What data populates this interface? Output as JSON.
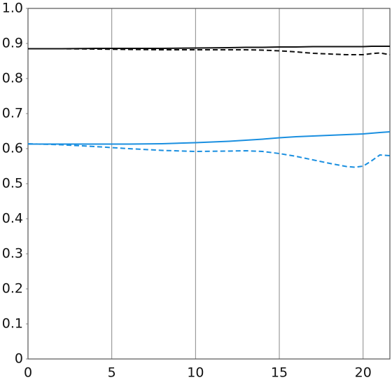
{
  "chart_data": {
    "type": "line",
    "x": [
      0,
      2,
      4,
      6,
      8,
      10,
      12,
      13,
      14,
      15,
      16,
      17,
      18,
      19,
      19.5,
      20,
      20.5,
      21,
      21.6
    ],
    "series": [
      {
        "color": "#111111",
        "dash": false,
        "values": [
          0.885,
          0.885,
          0.886,
          0.886,
          0.886,
          0.887,
          0.888,
          0.889,
          0.889,
          0.89,
          0.89,
          0.891,
          0.891,
          0.891,
          0.891,
          0.891,
          0.892,
          0.892,
          0.892
        ]
      },
      {
        "color": "#111111",
        "dash": true,
        "values": [
          0.885,
          0.885,
          0.884,
          0.883,
          0.882,
          0.882,
          0.882,
          0.882,
          0.881,
          0.879,
          0.876,
          0.872,
          0.87,
          0.868,
          0.868,
          0.868,
          0.871,
          0.873,
          0.868
        ]
      },
      {
        "color": "#1a8fe0",
        "dash": false,
        "values": [
          0.613,
          0.613,
          0.613,
          0.613,
          0.614,
          0.617,
          0.621,
          0.624,
          0.627,
          0.631,
          0.634,
          0.636,
          0.638,
          0.64,
          0.641,
          0.642,
          0.644,
          0.646,
          0.648
        ]
      },
      {
        "color": "#1a8fe0",
        "dash": true,
        "values": [
          0.614,
          0.611,
          0.606,
          0.6,
          0.595,
          0.592,
          0.593,
          0.594,
          0.592,
          0.586,
          0.578,
          0.568,
          0.558,
          0.549,
          0.547,
          0.55,
          0.565,
          0.582,
          0.58
        ]
      }
    ],
    "xlim": [
      0,
      21.6
    ],
    "xticks": [
      0,
      5,
      10,
      15,
      20
    ],
    "ylim": [
      0,
      1
    ],
    "yticks": [
      0,
      0.1,
      0.2,
      0.3,
      0.4,
      0.5,
      0.6,
      0.7,
      0.8,
      0.9,
      {
        "value": 1,
        "label": "1.0"
      }
    ],
    "grid": "x"
  }
}
